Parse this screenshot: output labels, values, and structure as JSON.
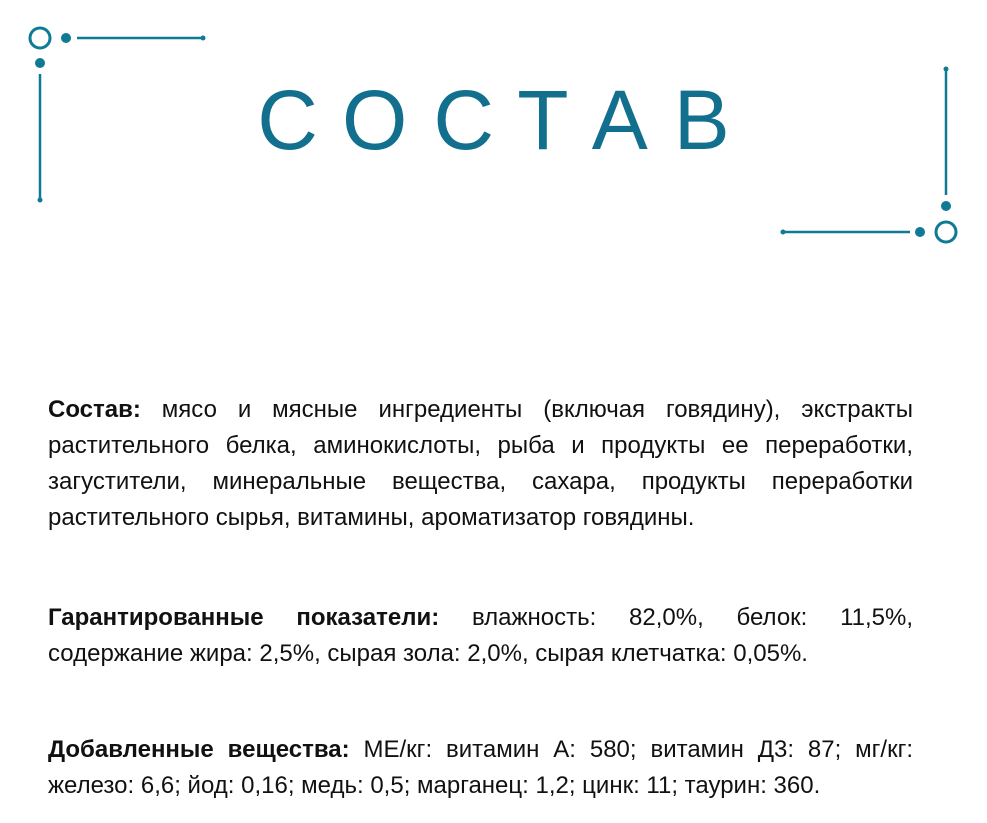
{
  "title": "СОСТАВ",
  "accent_color": "#0e7a93",
  "sections": [
    {
      "label": "Состав:",
      "text": " мясо и мясные ингредиенты (включая говядину), экстракты растительного белка, аминокислоты, рыба и продукты ее переработки, загустители, минеральные вещества, сахара, продукты переработки растительного сырья, витамины, ароматизатор говядины."
    },
    {
      "label": "Гарантированные показатели:",
      "text": " влажность: 82,0%, белок: 11,5%, содержание жира: 2,5%, сырая зола: 2,0%, сырая клетчатка: 0,05%."
    },
    {
      "label": "Добавленные вещества:",
      "text": " МЕ/кг: витамин А: 580; витамин Д3: 87; мг/кг: железо: 6,6; йод: 0,16; медь: 0,5; марганец: 1,2; цинк: 11; таурин: 360."
    }
  ]
}
